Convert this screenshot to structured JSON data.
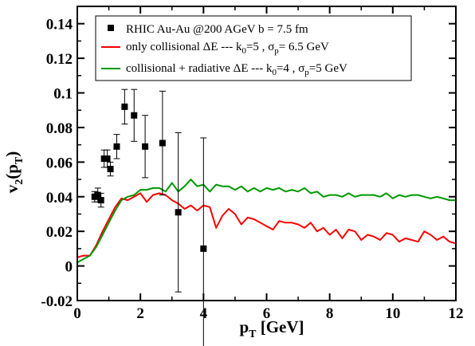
{
  "chart_data": {
    "type": "scatter",
    "xlim": [
      0,
      12
    ],
    "ylim": [
      -0.02,
      0.15
    ],
    "x_ticks": [
      0,
      2,
      4,
      6,
      8,
      10,
      12
    ],
    "x_tick_labels": [
      "0",
      "2",
      "4",
      "6",
      "8",
      "10",
      "12"
    ],
    "y_ticks": [
      -0.02,
      0,
      0.02,
      0.04,
      0.06,
      0.08,
      0.1,
      0.12,
      0.14
    ],
    "y_tick_labels": [
      "-0.02",
      "0",
      "0.02",
      "0.04",
      "0.06",
      "0.08",
      "0.1",
      "0.12",
      "0.14"
    ],
    "xlabel": {
      "main": "p",
      "sub": "T",
      "rest": " [GeV]"
    },
    "ylabel": {
      "main": "v",
      "sub1": "2",
      "mid": "(p",
      "sub2": "T",
      "end": ")"
    },
    "grid": false,
    "legend_position": "top",
    "series": [
      {
        "type": "scatter",
        "color": "#000000",
        "legend": {
          "text": "RHIC Au-Au @200 AGeV b = 7.5 fm"
        },
        "points": [
          {
            "x": 0.55,
            "y": 0.04,
            "err": 0.003
          },
          {
            "x": 0.65,
            "y": 0.041,
            "err": 0.004
          },
          {
            "x": 0.75,
            "y": 0.038,
            "err": 0.004
          },
          {
            "x": 0.85,
            "y": 0.062,
            "err": 0.005
          },
          {
            "x": 0.95,
            "y": 0.062,
            "err": 0.005
          },
          {
            "x": 1.05,
            "y": 0.056,
            "err": 0.004
          },
          {
            "x": 1.25,
            "y": 0.069,
            "err": 0.007
          },
          {
            "x": 1.5,
            "y": 0.092,
            "err": 0.01
          },
          {
            "x": 1.8,
            "y": 0.087,
            "err": 0.015
          },
          {
            "x": 2.15,
            "y": 0.069,
            "err": 0.018
          },
          {
            "x": 2.7,
            "y": 0.071,
            "err": 0.03
          },
          {
            "x": 3.2,
            "y": 0.031,
            "err": 0.046
          },
          {
            "x": 4.0,
            "y": 0.01,
            "err": 0.064
          }
        ]
      },
      {
        "type": "line",
        "color": "#ff0000",
        "legend": {
          "a": "only collisional ",
          "b": "ΔE --- k",
          "b_sub": "0",
          "c": "=5 , ",
          "d": "σ",
          "d_sub": "p",
          "e": "= 6.5 GeV"
        },
        "x": [
          0,
          0.2,
          0.4,
          0.6,
          0.8,
          1.0,
          1.2,
          1.4,
          1.6,
          1.8,
          2.0,
          2.2,
          2.4,
          2.6,
          2.8,
          3.0,
          3.2,
          3.4,
          3.6,
          3.8,
          4.0,
          4.2,
          4.4,
          4.6,
          4.8,
          5.0,
          5.2,
          5.4,
          5.6,
          5.8,
          6.0,
          6.2,
          6.4,
          6.6,
          6.8,
          7.0,
          7.2,
          7.4,
          7.6,
          7.8,
          8.0,
          8.2,
          8.4,
          8.6,
          8.8,
          9.0,
          9.2,
          9.4,
          9.6,
          9.8,
          10.0,
          10.2,
          10.4,
          10.6,
          10.8,
          11.0,
          11.2,
          11.4,
          11.6,
          11.8,
          12.0
        ],
        "y": [
          0.005,
          0.006,
          0.006,
          0.012,
          0.02,
          0.027,
          0.034,
          0.039,
          0.038,
          0.04,
          0.042,
          0.037,
          0.041,
          0.042,
          0.041,
          0.038,
          0.036,
          0.033,
          0.035,
          0.032,
          0.035,
          0.034,
          0.022,
          0.029,
          0.033,
          0.03,
          0.024,
          0.028,
          0.027,
          0.025,
          0.023,
          0.021,
          0.026,
          0.025,
          0.025,
          0.024,
          0.022,
          0.025,
          0.02,
          0.022,
          0.018,
          0.021,
          0.016,
          0.021,
          0.02,
          0.015,
          0.018,
          0.017,
          0.015,
          0.019,
          0.018,
          0.014,
          0.016,
          0.015,
          0.014,
          0.02,
          0.018,
          0.015,
          0.017,
          0.014,
          0.013
        ]
      },
      {
        "type": "line",
        "color": "#009900",
        "legend": {
          "a": "collisional + radiative ",
          "b": "ΔE --- k",
          "b_sub": "0",
          "c": "=4 , ",
          "d": "σ",
          "d_sub": "p",
          "e": "=5 GeV"
        },
        "x": [
          0,
          0.2,
          0.4,
          0.6,
          0.8,
          1.0,
          1.2,
          1.4,
          1.6,
          1.8,
          2.0,
          2.2,
          2.4,
          2.6,
          2.8,
          3.0,
          3.2,
          3.4,
          3.6,
          3.8,
          4.0,
          4.2,
          4.4,
          4.6,
          4.8,
          5.0,
          5.2,
          5.4,
          5.6,
          5.8,
          6.0,
          6.2,
          6.4,
          6.6,
          6.8,
          7.0,
          7.2,
          7.4,
          7.6,
          7.8,
          8.0,
          8.2,
          8.4,
          8.6,
          8.8,
          9.0,
          9.2,
          9.4,
          9.6,
          9.8,
          10.0,
          10.2,
          10.4,
          10.6,
          10.8,
          11.0,
          11.2,
          11.4,
          11.6,
          11.8,
          12.0
        ],
        "y": [
          0.002,
          0.004,
          0.006,
          0.011,
          0.018,
          0.025,
          0.032,
          0.038,
          0.04,
          0.041,
          0.044,
          0.044,
          0.045,
          0.045,
          0.043,
          0.048,
          0.043,
          0.046,
          0.05,
          0.046,
          0.047,
          0.043,
          0.047,
          0.046,
          0.046,
          0.044,
          0.046,
          0.043,
          0.045,
          0.043,
          0.045,
          0.044,
          0.045,
          0.043,
          0.044,
          0.043,
          0.045,
          0.042,
          0.043,
          0.04,
          0.041,
          0.041,
          0.04,
          0.042,
          0.04,
          0.041,
          0.041,
          0.041,
          0.04,
          0.042,
          0.039,
          0.041,
          0.04,
          0.041,
          0.041,
          0.04,
          0.039,
          0.04,
          0.039,
          0.038,
          0.038
        ]
      }
    ]
  }
}
